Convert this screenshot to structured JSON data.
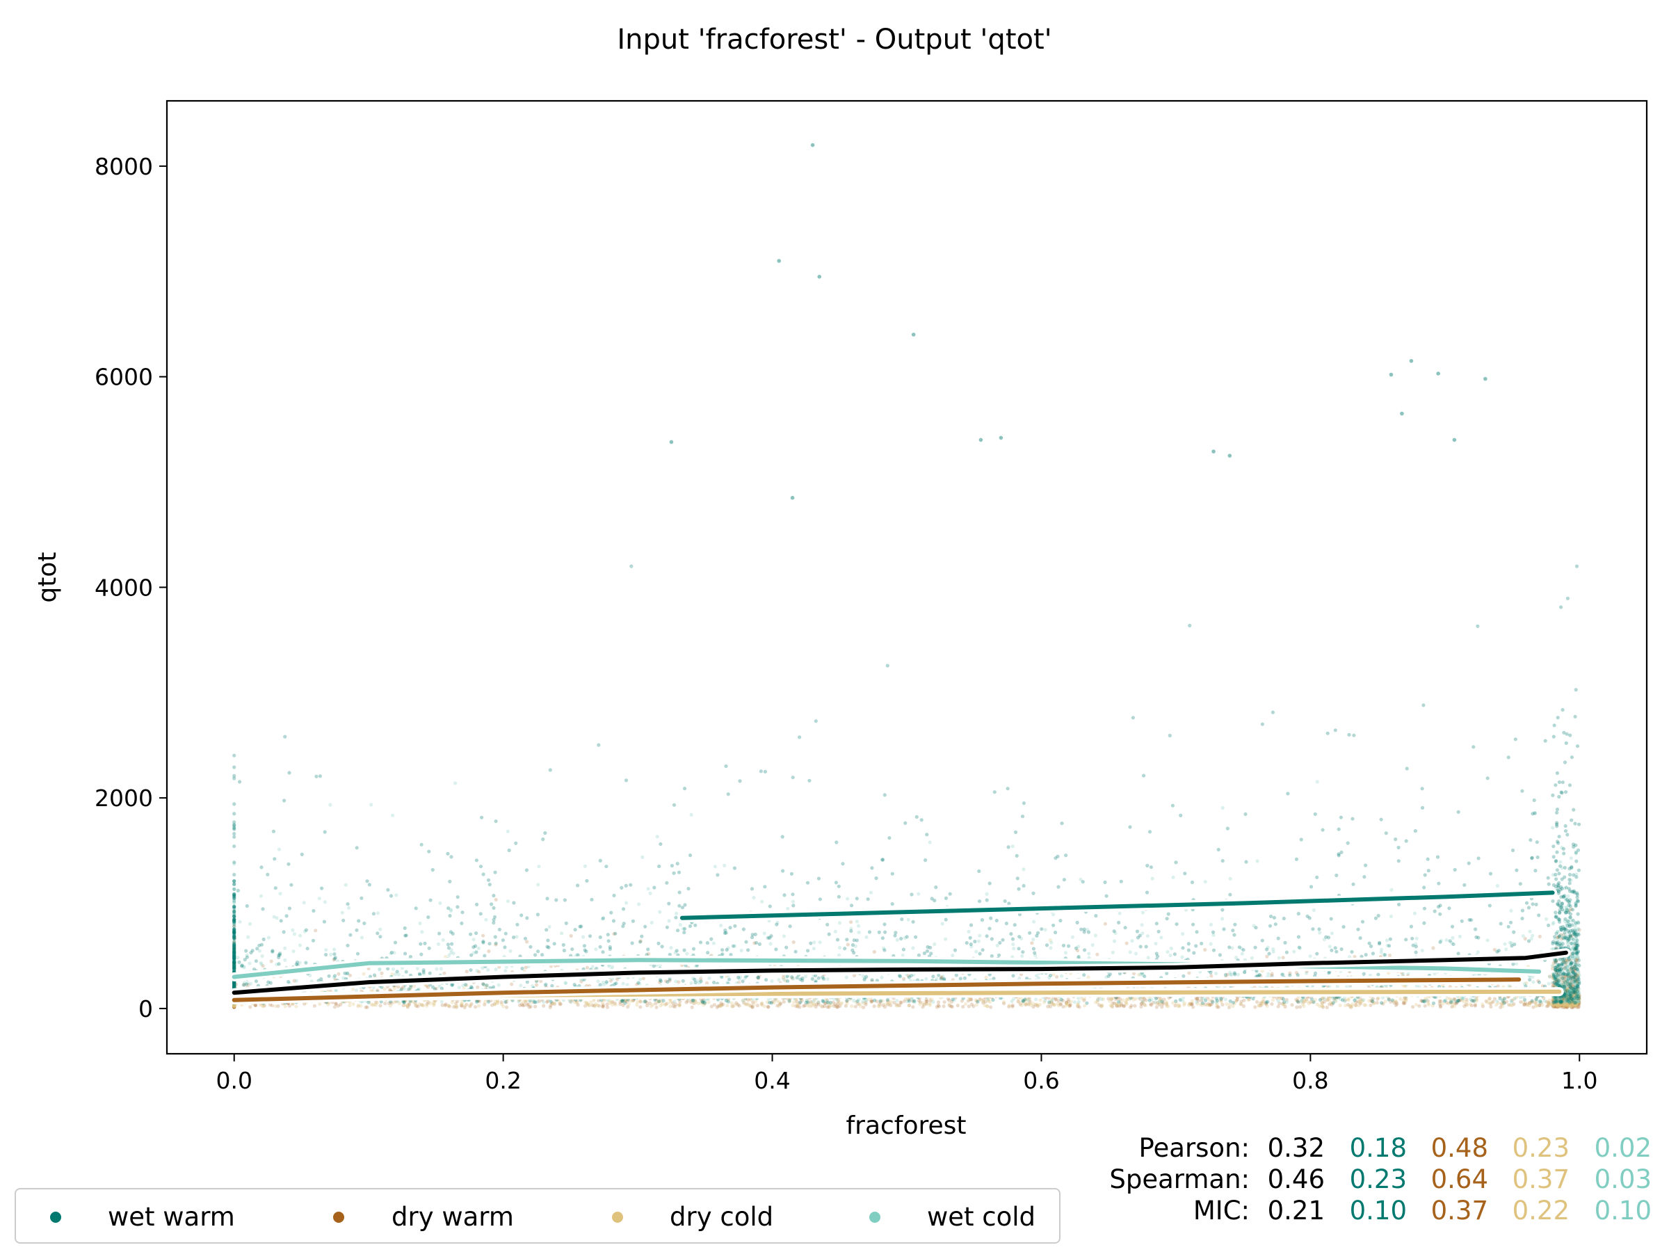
{
  "chart_data": {
    "type": "scatter",
    "title": "Input 'fracforest' - Output 'qtot'",
    "xlabel": "fracforest",
    "ylabel": "qtot",
    "xlim": [
      -0.05,
      1.05
    ],
    "ylim": [
      -430,
      8620
    ],
    "xticks": [
      0.0,
      0.2,
      0.4,
      0.6,
      0.8,
      1.0
    ],
    "xtick_labels": [
      "0.0",
      "0.2",
      "0.4",
      "0.6",
      "0.8",
      "1.0"
    ],
    "yticks": [
      0,
      2000,
      4000,
      6000,
      8000
    ],
    "ytick_labels": [
      "0",
      "2000",
      "4000",
      "6000",
      "8000"
    ],
    "grid": false,
    "legend_position": "bottom-left, below plot",
    "series": [
      {
        "name": "wet warm",
        "color": "#01796f",
        "trend": {
          "x": [
            0.333,
            0.45,
            0.6,
            0.75,
            0.9,
            0.98
          ],
          "y": [
            860,
            900,
            950,
            1000,
            1060,
            1100
          ]
        },
        "outliers": {
          "x": [
            0.43,
            0.405,
            0.435,
            0.505,
            0.875,
            0.895,
            0.86,
            0.93,
            0.57,
            0.325,
            0.555,
            0.728,
            0.74,
            0.907,
            0.868,
            0.415
          ],
          "y": [
            8200,
            7100,
            6950,
            6400,
            6150,
            6030,
            6020,
            5980,
            5420,
            5380,
            5400,
            5290,
            5250,
            5400,
            5650,
            4850
          ]
        }
      },
      {
        "name": "dry warm",
        "color": "#a6611a",
        "trend": {
          "x": [
            0.0,
            0.2,
            0.4,
            0.6,
            0.8,
            0.955
          ],
          "y": [
            80,
            150,
            200,
            235,
            260,
            275
          ]
        }
      },
      {
        "name": "dry cold",
        "color": "#dfc27d",
        "trend": {
          "x": [
            0.0,
            0.2,
            0.4,
            0.6,
            0.8,
            0.985
          ],
          "y": [
            110,
            125,
            140,
            150,
            155,
            160
          ]
        }
      },
      {
        "name": "wet cold",
        "color": "#80cdc1",
        "trend": {
          "x": [
            0.0,
            0.1,
            0.3,
            0.5,
            0.7,
            0.9,
            0.97
          ],
          "y": [
            300,
            430,
            460,
            450,
            420,
            380,
            350
          ]
        }
      },
      {
        "name": "",
        "color": "#000000",
        "trend": {
          "x": [
            0.0,
            0.1,
            0.2,
            0.3,
            0.4,
            0.5,
            0.6,
            0.7,
            0.8,
            0.9,
            0.96,
            0.99
          ],
          "y": [
            150,
            250,
            300,
            340,
            360,
            370,
            375,
            390,
            430,
            460,
            480,
            530
          ]
        }
      }
    ],
    "stats": {
      "rows": [
        {
          "label": "Pearson:",
          "overall": "0.32",
          "values": [
            "0.18",
            "0.48",
            "0.23",
            "0.02"
          ]
        },
        {
          "label": "Spearman:",
          "overall": "0.46",
          "values": [
            "0.23",
            "0.64",
            "0.37",
            "0.03"
          ]
        },
        {
          "label": "MIC:",
          "overall": "0.21",
          "values": [
            "0.10",
            "0.37",
            "0.22",
            "0.10"
          ]
        }
      ]
    },
    "legend": [
      "wet warm",
      "dry warm",
      "dry cold",
      "wet cold"
    ]
  }
}
